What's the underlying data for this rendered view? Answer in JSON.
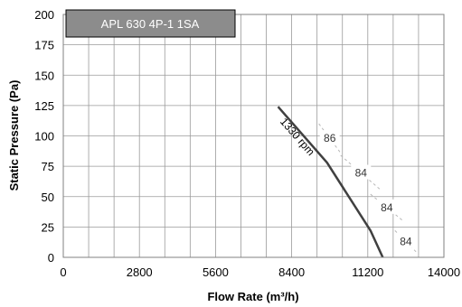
{
  "chart_data": {
    "type": "line",
    "title": "APL 630 4P-1 1SA",
    "xlabel": "Flow Rate (m³/h)",
    "ylabel": "Static Pressure (Pa)",
    "xlim": [
      0,
      14000
    ],
    "ylim": [
      0,
      200
    ],
    "x_ticks": [
      0,
      2800,
      5600,
      8400,
      11200,
      14000
    ],
    "y_ticks": [
      0,
      25,
      50,
      75,
      100,
      125,
      150,
      175,
      200
    ],
    "x_tick_labels": [
      "0",
      "2800",
      "5600",
      "8400",
      "11200",
      "14000"
    ],
    "y_tick_labels": [
      "0",
      "25",
      "50",
      "75",
      "100",
      "125",
      "150",
      "175",
      "200"
    ],
    "grid": true,
    "series": [
      {
        "name": "1330 rpm",
        "x": [
          7900,
          9700,
          11300,
          11750
        ],
        "y": [
          124,
          78,
          22,
          0
        ],
        "color": "#404040"
      }
    ],
    "efficiency_lines": [
      {
        "label": "86",
        "x": [
          9400,
          10200
        ],
        "y": [
          110,
          86
        ]
      },
      {
        "label": "84",
        "x": [
          10200,
          11700
        ],
        "y": [
          84,
          55
        ]
      },
      {
        "label": "84",
        "x": [
          11300,
          12500
        ],
        "y": [
          52,
          30
        ]
      },
      {
        "label": "84",
        "x": [
          12200,
          13000
        ],
        "y": [
          22,
          4
        ]
      }
    ]
  }
}
